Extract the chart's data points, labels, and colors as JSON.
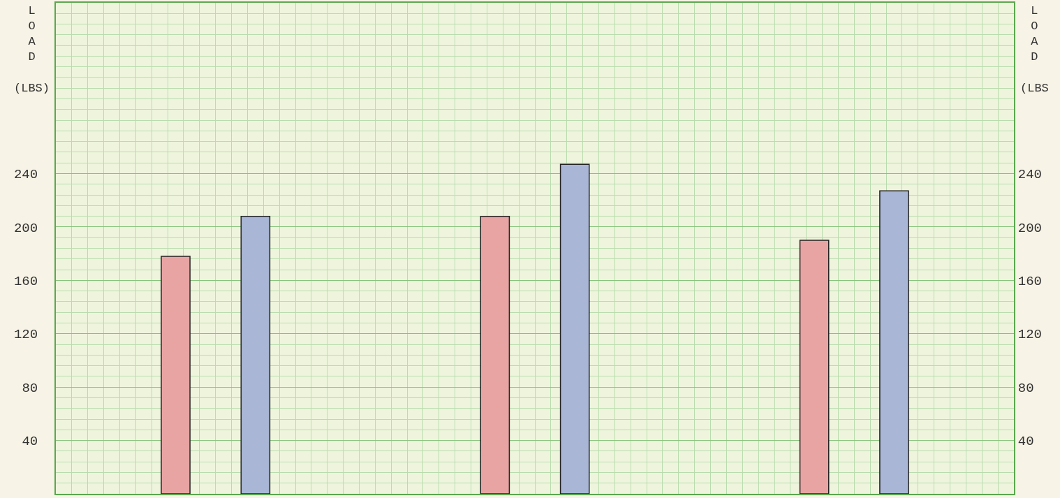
{
  "chart_data": {
    "type": "bar",
    "ylabel": "LOAD (LBS)",
    "y2label": "LOAD (LBS",
    "categories": [
      null,
      null,
      null
    ],
    "series": [
      {
        "color": "#e8a3a3",
        "values": [
          178,
          208,
          190
        ]
      },
      {
        "color": "#a9b6d6",
        "values": [
          208,
          247,
          227
        ]
      }
    ],
    "ylim": [
      0,
      368
    ],
    "yticks": [
      40,
      80,
      120,
      160,
      200,
      240
    ],
    "y2lim": [
      0,
      368
    ],
    "y2ticks": [
      40,
      80,
      120,
      160,
      200,
      240
    ],
    "grid": true
  }
}
